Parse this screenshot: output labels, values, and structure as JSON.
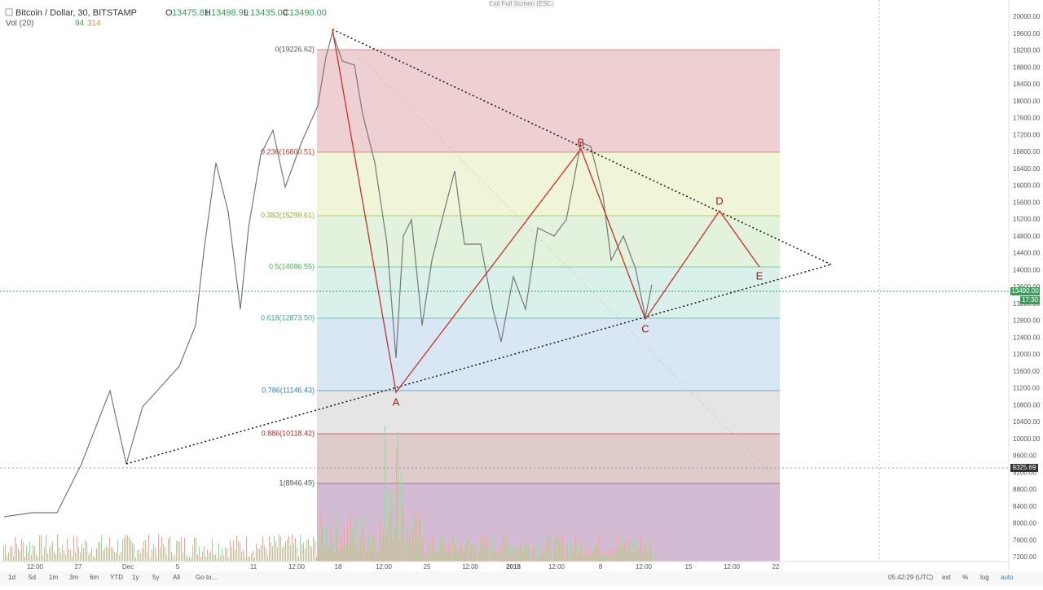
{
  "header": {
    "symbol": "Bitcoin / Dollar, 30, BITSTAMP",
    "ohlc": [
      {
        "label": "O",
        "value": "13475.81"
      },
      {
        "label": "H",
        "value": "13498.99"
      },
      {
        "label": "L",
        "value": "13435.00"
      },
      {
        "label": "C",
        "value": "13490.00"
      }
    ],
    "volume": {
      "label": "Vol (20)",
      "value1": "94",
      "value2": "314"
    },
    "exit_fullscreen": "Exit Full Screen (ESC)"
  },
  "price_axis": {
    "ticks": [
      "20000.00",
      "19600.00",
      "19200.00",
      "18800.00",
      "18400.00",
      "18000.00",
      "17600.00",
      "17200.00",
      "16800.00",
      "16400.00",
      "16000.00",
      "15600.00",
      "15200.00",
      "14800.00",
      "14400.00",
      "14000.00",
      "13600.00",
      "13200.00",
      "12800.00",
      "12400.00",
      "12000.00",
      "11600.00",
      "11200.00",
      "10800.00",
      "10400.00",
      "10000.00",
      "9600.00",
      "9200.00",
      "8800.00",
      "8400.00",
      "8000.00",
      "7600.00",
      "7200.00"
    ],
    "last_price": "13490.00",
    "countdown": "17:30",
    "crosshair_price": "9325.69"
  },
  "time_axis": {
    "ticks": [
      "12:00",
      "27",
      "Dec",
      "5",
      "11",
      "12:00",
      "18",
      "12:00",
      "25",
      "12:00",
      "2018",
      "12:00",
      "8",
      "12:00",
      "15",
      "12:00",
      "22"
    ]
  },
  "fib_levels": [
    "0(19226.62)",
    "0.236(16800.51)",
    "0.382(15299.61)",
    "0.5(14086.55)",
    "0.618(12873.50)",
    "0.786(11146.43)",
    "0.886(10118.42)",
    "1(8946.49)"
  ],
  "wave_labels": [
    "A",
    "B",
    "C",
    "D",
    "E"
  ],
  "toolbar": {
    "ranges": [
      "1d",
      "5d",
      "1m",
      "3m",
      "6m",
      "YTD",
      "1y",
      "5y",
      "All"
    ],
    "goto": "Go to...",
    "time": "05:42:29 (UTC)",
    "options": [
      "ext",
      "%",
      "log",
      "auto"
    ]
  }
}
